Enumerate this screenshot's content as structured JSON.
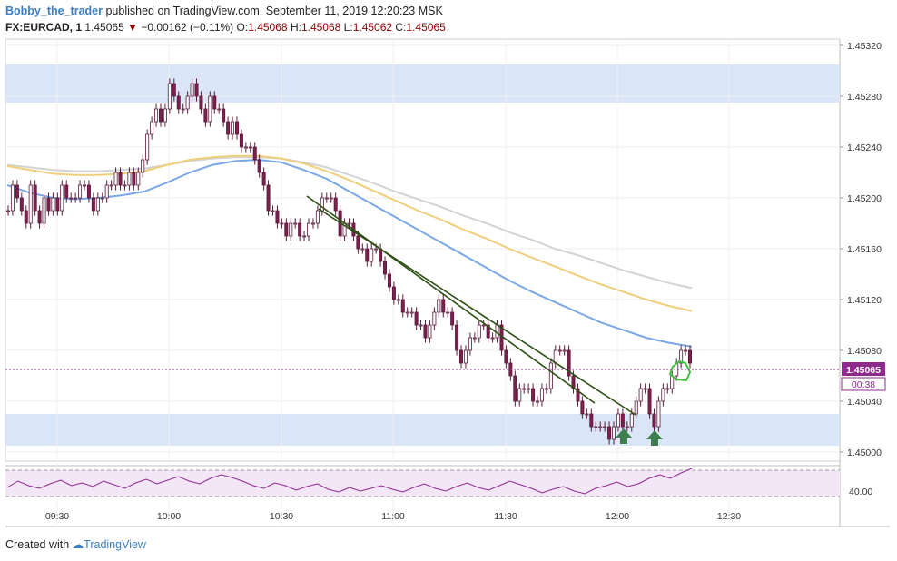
{
  "header": {
    "author": "Bobby_the_trader",
    "published": "published on TradingView.com, September 11, 2019 12:20:23 MSK",
    "symbol": "FX:EURCAD, 1",
    "last": "1.45065",
    "change": "−0.00162 (−0.11%)",
    "o_label": "O:",
    "o_val": "1.45068",
    "h_label": "H:",
    "h_val": "1.45068",
    "l_label": "L:",
    "l_val": "1.45062",
    "c_label": "C:",
    "c_val": "1.45065"
  },
  "footer": {
    "created_with": "Created with",
    "brand": "TradingView"
  },
  "price_badge": {
    "price": "1.45065",
    "countdown": "00:38"
  },
  "rsi_label": "40.00",
  "colors": {
    "bull": "#7d1f4f",
    "bear": "#7d1f4f",
    "ma_fast": "#7aa8e6",
    "ma_mid": "#f0cf7a",
    "ma_slow": "#d3d3d3",
    "zone": "#dae6f8",
    "trend": "#2d5016",
    "arrow": "#3f7f4f",
    "rsi": "#8e2a8e",
    "rsi_bg": "#f3e6f7",
    "highlight": "#3ec43e"
  },
  "chart_data": {
    "type": "candlestick",
    "symbol": "FX:EURCAD",
    "interval": "1",
    "x_ticks": [
      "09:30",
      "10:00",
      "10:30",
      "11:00",
      "11:30",
      "12:00",
      "12:30"
    ],
    "y_ticks": [
      "1.45320",
      "1.45280",
      "1.45240",
      "1.45200",
      "1.45160",
      "1.45120",
      "1.45080",
      "1.45040",
      "1.45000"
    ],
    "ylim": [
      1.4499,
      1.4533
    ],
    "zones": [
      {
        "from": 1.45275,
        "to": 1.45305
      },
      {
        "from": 1.45005,
        "to": 1.4503
      }
    ],
    "candle_close": [
      1.4519,
      1.4521,
      1.452,
      1.4519,
      1.4518,
      1.4521,
      1.4519,
      1.4518,
      1.452,
      1.4519,
      1.452,
      1.4519,
      1.4521,
      1.452,
      1.452,
      1.452,
      1.4521,
      1.4521,
      1.452,
      1.4519,
      1.452,
      1.452,
      1.4521,
      1.4521,
      1.4522,
      1.4521,
      1.4521,
      1.4522,
      1.4521,
      1.4522,
      1.4523,
      1.4525,
      1.4526,
      1.4527,
      1.4526,
      1.4527,
      1.4529,
      1.4528,
      1.4527,
      1.4527,
      1.4528,
      1.4529,
      1.4528,
      1.4527,
      1.4526,
      1.4528,
      1.4527,
      1.4527,
      1.4526,
      1.4525,
      1.4526,
      1.4525,
      1.4524,
      1.4524,
      1.4524,
      1.4523,
      1.4522,
      1.4521,
      1.4519,
      1.4519,
      1.4518,
      1.4518,
      1.4517,
      1.4518,
      1.4518,
      1.4517,
      1.4517,
      1.4518,
      1.4518,
      1.4519,
      1.452,
      1.452,
      1.452,
      1.4519,
      1.4517,
      1.4518,
      1.4518,
      1.4517,
      1.4516,
      1.4516,
      1.4515,
      1.4516,
      1.4516,
      1.4515,
      1.4514,
      1.4513,
      1.4512,
      1.4512,
      1.4511,
      1.4511,
      1.4511,
      1.451,
      1.451,
      1.4509,
      1.451,
      1.4511,
      1.4512,
      1.4511,
      1.4511,
      1.451,
      1.4508,
      1.4507,
      1.4508,
      1.4509,
      1.4509,
      1.451,
      1.451,
      1.4509,
      1.4509,
      1.451,
      1.4508,
      1.4507,
      1.4506,
      1.4504,
      1.4505,
      1.4505,
      1.4505,
      1.4504,
      1.4504,
      1.4505,
      1.4505,
      1.4507,
      1.4508,
      1.4508,
      1.4508,
      1.4506,
      1.4505,
      1.4504,
      1.4503,
      1.4503,
      1.4502,
      1.4502,
      1.4502,
      1.4502,
      1.4501,
      1.4502,
      1.4503,
      1.4502,
      1.4502,
      1.4503,
      1.4504,
      1.4505,
      1.4505,
      1.4503,
      1.4502,
      1.4504,
      1.4505,
      1.4505,
      1.4506,
      1.4507,
      1.4508,
      1.4508,
      1.4507
    ],
    "ema_fast": [
      1.4521,
      1.45204,
      1.452,
      1.45199,
      1.452,
      1.45202,
      1.45205,
      1.45212,
      1.4522,
      1.45226,
      1.45229,
      1.4523,
      1.45228,
      1.45222,
      1.45215,
      1.45205,
      1.45195,
      1.45185,
      1.45175,
      1.45165,
      1.45155,
      1.45145,
      1.45135,
      1.45126,
      1.45118,
      1.4511,
      1.45102,
      1.45096,
      1.4509,
      1.45086,
      1.45083
    ],
    "ema_mid": [
      1.45225,
      1.45222,
      1.45219,
      1.45218,
      1.45218,
      1.45219,
      1.45221,
      1.45226,
      1.4523,
      1.45232,
      1.45233,
      1.45233,
      1.45231,
      1.45227,
      1.45221,
      1.45214,
      1.45206,
      1.45198,
      1.4519,
      1.45183,
      1.45175,
      1.45168,
      1.4516,
      1.45153,
      1.45146,
      1.45139,
      1.45132,
      1.45126,
      1.4512,
      1.45115,
      1.45111
    ],
    "ema_slow": [
      1.45226,
      1.45224,
      1.45222,
      1.45221,
      1.45221,
      1.45222,
      1.45223,
      1.45226,
      1.45229,
      1.45231,
      1.45232,
      1.45232,
      1.45231,
      1.45228,
      1.45224,
      1.45218,
      1.45212,
      1.45205,
      1.45199,
      1.45193,
      1.45186,
      1.4518,
      1.45173,
      1.45167,
      1.4516,
      1.45155,
      1.45149,
      1.45143,
      1.45138,
      1.45133,
      1.45129
    ],
    "rsi": [
      48,
      55,
      50,
      47,
      52,
      56,
      50,
      53,
      49,
      55,
      51,
      47,
      53,
      57,
      52,
      56,
      60,
      55,
      52,
      58,
      62,
      59,
      55,
      50,
      47,
      53,
      50,
      45,
      49,
      52,
      46,
      43,
      48,
      44,
      47,
      50,
      46,
      43,
      48,
      52,
      47,
      44,
      49,
      53,
      48,
      45,
      50,
      55,
      51,
      47,
      42,
      46,
      49,
      44,
      41,
      47,
      50,
      54,
      49,
      52,
      58,
      62,
      58,
      64,
      69
    ]
  }
}
